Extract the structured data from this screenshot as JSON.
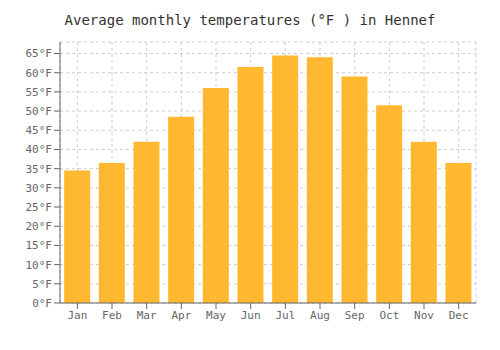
{
  "chart_data": {
    "type": "bar",
    "title": "Average monthly temperatures (°F ) in Hennef",
    "categories": [
      "Jan",
      "Feb",
      "Mar",
      "Apr",
      "May",
      "Jun",
      "Jul",
      "Aug",
      "Sep",
      "Oct",
      "Nov",
      "Dec"
    ],
    "values": [
      34.5,
      36.5,
      42.0,
      48.5,
      56.0,
      61.5,
      64.5,
      64.0,
      59.0,
      51.5,
      42.0,
      36.5
    ],
    "color": "#FFB830",
    "ylim": [
      0,
      68
    ],
    "yticks": [
      {
        "value": 0,
        "label": "0°F"
      },
      {
        "value": 5,
        "label": "5°F"
      },
      {
        "value": 10,
        "label": "10°F"
      },
      {
        "value": 15,
        "label": "15°F"
      },
      {
        "value": 20,
        "label": "20°F"
      },
      {
        "value": 25,
        "label": "25°F"
      },
      {
        "value": 30,
        "label": "30°F"
      },
      {
        "value": 35,
        "label": "35°F"
      },
      {
        "value": 40,
        "label": "40°F"
      },
      {
        "value": 45,
        "label": "45°F"
      },
      {
        "value": 50,
        "label": "50°F"
      },
      {
        "value": 55,
        "label": "55°F"
      },
      {
        "value": 60,
        "label": "60°F"
      },
      {
        "value": 65,
        "label": "65°F"
      }
    ],
    "grid": true
  }
}
